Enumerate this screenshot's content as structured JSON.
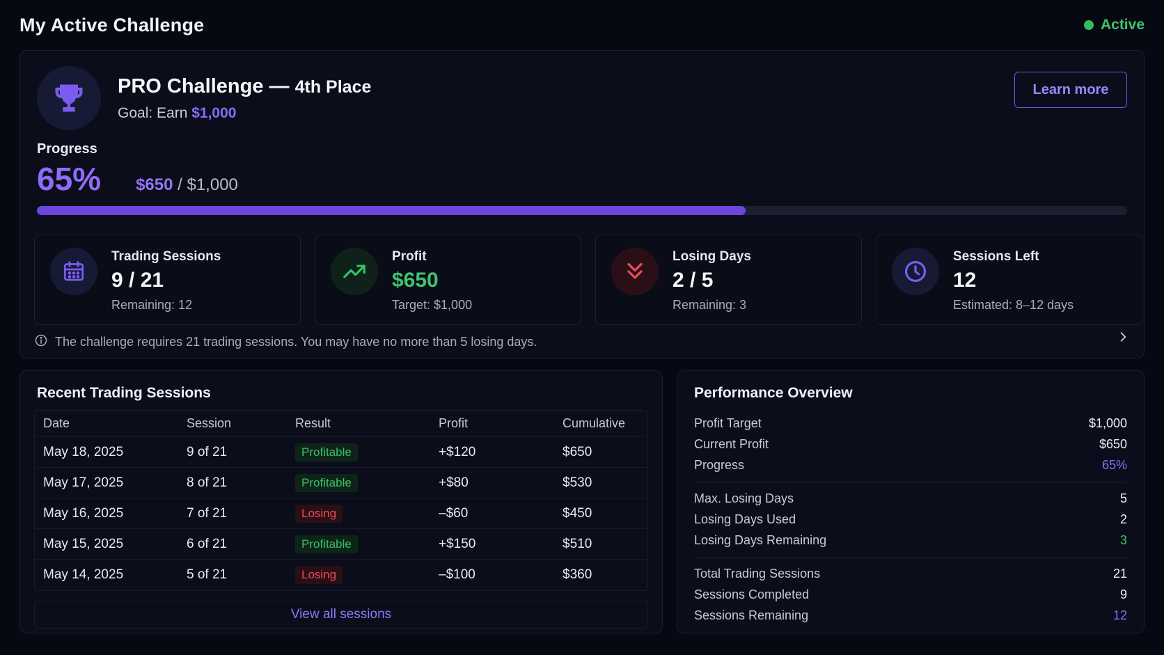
{
  "header": {
    "title": "My Active Challenge",
    "status": "Active"
  },
  "challenge": {
    "title": "PRO Challenge —",
    "place": "4th Place",
    "goal_prefix": "Goal: Earn",
    "goal_amount": "$1,000",
    "learn_more": "Learn more",
    "progress_label": "Progress",
    "progress_pct": "65%",
    "progress_value": 0.65,
    "progress_current": "$650",
    "progress_target": "/ $1,000"
  },
  "stats": [
    {
      "label": "Trading Sessions",
      "value": "9 / 21",
      "sub": "Remaining: 12",
      "icon": "calendar-icon"
    },
    {
      "label": "Profit",
      "value": "$650",
      "sub": "Target: $1,000",
      "icon": "trending-up-icon"
    },
    {
      "label": "Losing Days",
      "value": "2 / 5",
      "sub": "Remaining: 3",
      "icon": "double-chevron-down-icon"
    },
    {
      "label": "Sessions Left",
      "value": "12",
      "sub": "Estimated: 8–12 days",
      "icon": "clock-icon"
    }
  ],
  "info_text": "The challenge requires 21 trading sessions. You may have no more than 5 losing days.",
  "sessions": {
    "title": "Recent Trading Sessions",
    "columns": [
      "Date",
      "Session",
      "Result",
      "Profit",
      "Cumulative"
    ],
    "rows": [
      [
        "May 18, 2025",
        "9 of 21",
        "Profitable",
        "+$120",
        "$650"
      ],
      [
        "May 17, 2025",
        "8 of 21",
        "Profitable",
        "+$80",
        "$530"
      ],
      [
        "May 16, 2025",
        "7 of 21",
        "Losing",
        "–$60",
        "$450"
      ],
      [
        "May 15, 2025",
        "6 of 21",
        "Profitable",
        "+$150",
        "$510"
      ],
      [
        "May 14, 2025",
        "5 of 21",
        "Losing",
        "–$100",
        "$360"
      ]
    ],
    "view_all": "View all sessions"
  },
  "performance": {
    "title": "Performance Overview",
    "groups": [
      [
        [
          "Profit Target",
          "$1,000"
        ],
        [
          "Current Profit",
          "$650"
        ],
        [
          "Progress",
          "65%"
        ]
      ],
      [
        [
          "Max. Losing Days",
          "5"
        ],
        [
          "Losing Days Used",
          "2"
        ],
        [
          "Losing Days Remaining",
          "3"
        ]
      ],
      [
        [
          "Total Trading Sessions",
          "21"
        ],
        [
          "Sessions Completed",
          "9"
        ],
        [
          "Sessions Remaining",
          "12"
        ]
      ]
    ]
  },
  "colors": {
    "accent": "#8b6cf7",
    "success": "#3ec46d",
    "danger": "#ef4b5a",
    "background": "#070912"
  }
}
